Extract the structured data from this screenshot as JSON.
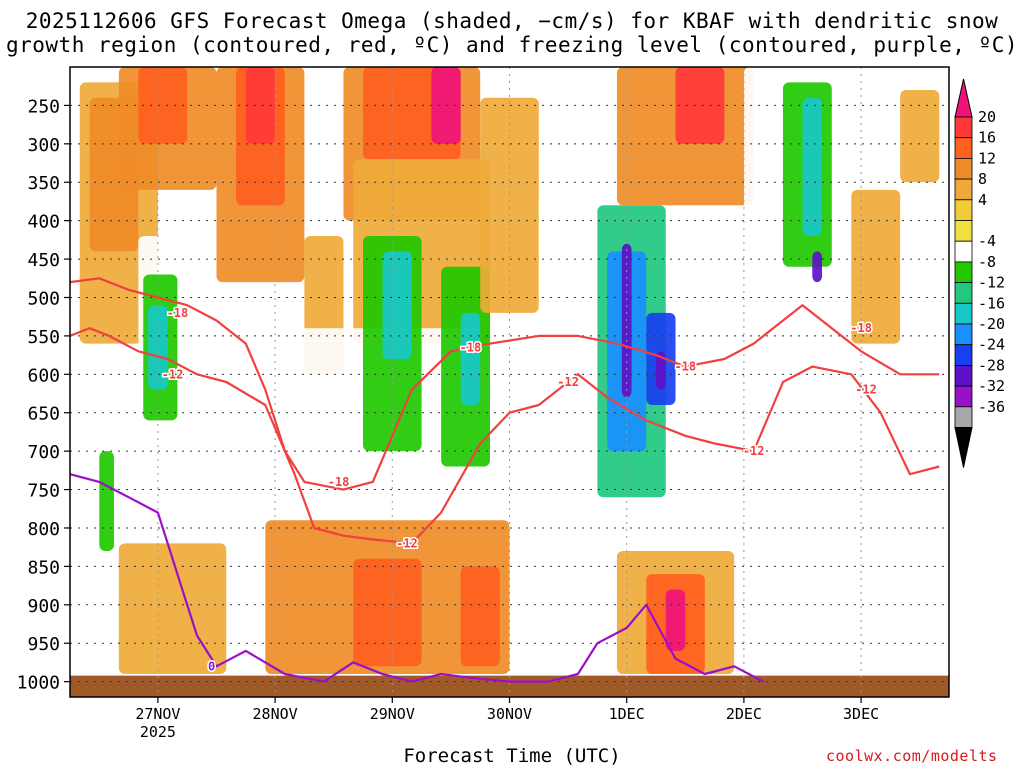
{
  "title": {
    "line1": "2025112606 GFS Forecast Omega (shaded, −cm/s) for KBAF with dendritic snow",
    "line2": "growth region (contoured, red, ºC) and freezing level (contoured, purple, ºC)"
  },
  "credit": "coolwx.com/modelts",
  "colors": {
    "dgz_line": "#f04040",
    "freezing_line": "#9a10c8",
    "terrain": "#a05a2a",
    "grid": "#333333"
  },
  "chart_data": {
    "type": "heatmap",
    "xlabel": "Forecast Time (UTC)",
    "ylabel": "",
    "x_ticks": [
      {
        "label": "27NOV",
        "sub": "2025",
        "hours_from_init": 18
      },
      {
        "label": "28NOV",
        "sub": "",
        "hours_from_init": 42
      },
      {
        "label": "29NOV",
        "sub": "",
        "hours_from_init": 66
      },
      {
        "label": "30NOV",
        "sub": "",
        "hours_from_init": 90
      },
      {
        "label": "1DEC",
        "sub": "",
        "hours_from_init": 114
      },
      {
        "label": "2DEC",
        "sub": "",
        "hours_from_init": 138
      },
      {
        "label": "3DEC",
        "sub": "",
        "hours_from_init": 162
      }
    ],
    "xlim_hours": [
      0,
      180
    ],
    "y_ticks": [
      250,
      300,
      350,
      400,
      450,
      500,
      550,
      600,
      650,
      700,
      750,
      800,
      850,
      900,
      950,
      1000
    ],
    "ylim_hpa": [
      200,
      1020
    ],
    "colorbar": {
      "levels": [
        20,
        16,
        12,
        8,
        4,
        -4,
        -8,
        -12,
        -16,
        -20,
        -24,
        -28,
        -32,
        -36
      ],
      "colors": [
        "#ff3838",
        "#ff6020",
        "#f08c28",
        "#eeaa38",
        "#f0cc38",
        "#f2e040",
        "#ffffff",
        "#20c800",
        "#20c880",
        "#18c8c8",
        "#1890ff",
        "#1840f0",
        "#6010c8",
        "#9810c8",
        "#a8a8a8",
        "#000000"
      ],
      "top_color": "#f0147a"
    },
    "omega_cells": [
      {
        "t0": 4,
        "t1": 10,
        "p0": 560,
        "p1": 860,
        "v": -10
      },
      {
        "t0": 6,
        "t1": 9,
        "p0": 700,
        "p1": 830,
        "v": -14
      },
      {
        "t0": 2,
        "t1": 18,
        "p0": 220,
        "p1": 560,
        "v": 6
      },
      {
        "t0": 4,
        "t1": 14,
        "p0": 240,
        "p1": 440,
        "v": 10
      },
      {
        "t0": 14,
        "t1": 24,
        "p0": 420,
        "p1": 720,
        "v": -10
      },
      {
        "t0": 15,
        "t1": 22,
        "p0": 470,
        "p1": 660,
        "v": -16
      },
      {
        "t0": 16,
        "t1": 20,
        "p0": 510,
        "p1": 620,
        "v": -22
      },
      {
        "t0": 10,
        "t1": 30,
        "p0": 200,
        "p1": 360,
        "v": 10
      },
      {
        "t0": 14,
        "t1": 24,
        "p0": 200,
        "p1": 300,
        "v": 14
      },
      {
        "t0": 24,
        "t1": 30,
        "p0": 500,
        "p1": 780,
        "v": -10
      },
      {
        "t0": 30,
        "t1": 48,
        "p0": 200,
        "p1": 480,
        "v": 8
      },
      {
        "t0": 34,
        "t1": 44,
        "p0": 200,
        "p1": 380,
        "v": 12
      },
      {
        "t0": 36,
        "t1": 42,
        "p0": 200,
        "p1": 300,
        "v": 17
      },
      {
        "t0": 48,
        "t1": 56,
        "p0": 420,
        "p1": 600,
        "v": 6
      },
      {
        "t0": 52,
        "t1": 60,
        "p0": 200,
        "p1": 300,
        "v": -10
      },
      {
        "t0": 56,
        "t1": 84,
        "p0": 200,
        "p1": 400,
        "v": 10
      },
      {
        "t0": 60,
        "t1": 80,
        "p0": 200,
        "p1": 320,
        "v": 14
      },
      {
        "t0": 74,
        "t1": 80,
        "p0": 200,
        "p1": 300,
        "v": 20
      },
      {
        "t0": 58,
        "t1": 86,
        "p0": 320,
        "p1": 560,
        "v": 6
      },
      {
        "t0": 46,
        "t1": 84,
        "p0": 540,
        "p1": 760,
        "v": -10
      },
      {
        "t0": 60,
        "t1": 72,
        "p0": 420,
        "p1": 700,
        "v": -14
      },
      {
        "t0": 64,
        "t1": 70,
        "p0": 440,
        "p1": 580,
        "v": -22
      },
      {
        "t0": 76,
        "t1": 86,
        "p0": 460,
        "p1": 720,
        "v": -14
      },
      {
        "t0": 80,
        "t1": 84,
        "p0": 520,
        "p1": 640,
        "v": -22
      },
      {
        "t0": 84,
        "t1": 96,
        "p0": 240,
        "p1": 520,
        "v": 6
      },
      {
        "t0": 96,
        "t1": 104,
        "p0": 360,
        "p1": 700,
        "v": -10
      },
      {
        "t0": 104,
        "t1": 126,
        "p0": 300,
        "p1": 830,
        "v": -12
      },
      {
        "t0": 108,
        "t1": 122,
        "p0": 380,
        "p1": 760,
        "v": -18
      },
      {
        "t0": 110,
        "t1": 118,
        "p0": 440,
        "p1": 700,
        "v": -26
      },
      {
        "t0": 113,
        "t1": 115,
        "p0": 430,
        "p1": 630,
        "v": -34
      },
      {
        "t0": 118,
        "t1": 124,
        "p0": 520,
        "p1": 640,
        "v": -30
      },
      {
        "t0": 120,
        "t1": 122,
        "p0": 570,
        "p1": 620,
        "v": -36
      },
      {
        "t0": 112,
        "t1": 140,
        "p0": 200,
        "p1": 380,
        "v": 10
      },
      {
        "t0": 124,
        "t1": 134,
        "p0": 200,
        "p1": 300,
        "v": 16
      },
      {
        "t0": 138,
        "t1": 160,
        "p0": 200,
        "p1": 560,
        "v": -12
      },
      {
        "t0": 146,
        "t1": 156,
        "p0": 220,
        "p1": 460,
        "v": -16
      },
      {
        "t0": 150,
        "t1": 154,
        "p0": 240,
        "p1": 420,
        "v": -22
      },
      {
        "t0": 152,
        "t1": 154,
        "p0": 440,
        "p1": 480,
        "v": -36
      },
      {
        "t0": 160,
        "t1": 170,
        "p0": 360,
        "p1": 560,
        "v": 6
      },
      {
        "t0": 170,
        "t1": 178,
        "p0": 230,
        "p1": 350,
        "v": 6
      },
      {
        "t0": 170,
        "t1": 178,
        "p0": 400,
        "p1": 640,
        "v": -10
      },
      {
        "t0": 10,
        "t1": 32,
        "p0": 820,
        "p1": 990,
        "v": 6
      },
      {
        "t0": 40,
        "t1": 90,
        "p0": 790,
        "p1": 990,
        "v": 8
      },
      {
        "t0": 58,
        "t1": 72,
        "p0": 840,
        "p1": 980,
        "v": 14
      },
      {
        "t0": 80,
        "t1": 88,
        "p0": 850,
        "p1": 980,
        "v": 14
      },
      {
        "t0": 112,
        "t1": 136,
        "p0": 830,
        "p1": 990,
        "v": 6
      },
      {
        "t0": 118,
        "t1": 130,
        "p0": 860,
        "p1": 990,
        "v": 12
      },
      {
        "t0": 122,
        "t1": 126,
        "p0": 880,
        "p1": 960,
        "v": 20
      },
      {
        "t0": 144,
        "t1": 176,
        "p0": 900,
        "p1": 990,
        "v": -10
      }
    ],
    "contours": [
      {
        "name": "-18",
        "color": "#f04040",
        "points": [
          [
            0,
            480
          ],
          [
            6,
            475
          ],
          [
            12,
            490
          ],
          [
            18,
            500
          ],
          [
            24,
            510
          ],
          [
            30,
            530
          ],
          [
            36,
            560
          ],
          [
            40,
            620
          ],
          [
            44,
            700
          ],
          [
            48,
            740
          ],
          [
            56,
            750
          ],
          [
            62,
            740
          ],
          [
            70,
            620
          ],
          [
            78,
            570
          ],
          [
            86,
            560
          ],
          [
            96,
            550
          ],
          [
            104,
            550
          ],
          [
            112,
            560
          ],
          [
            120,
            575
          ],
          [
            126,
            590
          ],
          [
            134,
            580
          ],
          [
            140,
            560
          ],
          [
            146,
            530
          ],
          [
            150,
            510
          ],
          [
            156,
            540
          ],
          [
            162,
            570
          ],
          [
            170,
            600
          ],
          [
            178,
            600
          ]
        ]
      },
      {
        "name": "-12",
        "color": "#f04040",
        "points": [
          [
            0,
            550
          ],
          [
            4,
            540
          ],
          [
            8,
            550
          ],
          [
            14,
            570
          ],
          [
            20,
            580
          ],
          [
            26,
            600
          ],
          [
            32,
            610
          ],
          [
            40,
            640
          ],
          [
            46,
            730
          ],
          [
            50,
            800
          ],
          [
            56,
            810
          ],
          [
            62,
            815
          ],
          [
            70,
            820
          ],
          [
            76,
            780
          ],
          [
            84,
            690
          ],
          [
            90,
            650
          ],
          [
            96,
            640
          ],
          [
            104,
            600
          ],
          [
            110,
            630
          ],
          [
            118,
            660
          ],
          [
            126,
            680
          ],
          [
            132,
            690
          ],
          [
            140,
            700
          ],
          [
            146,
            610
          ],
          [
            152,
            590
          ],
          [
            160,
            600
          ],
          [
            166,
            650
          ],
          [
            172,
            730
          ],
          [
            178,
            720
          ]
        ]
      },
      {
        "name": "0",
        "color": "#9a10c8",
        "points": [
          [
            0,
            730
          ],
          [
            6,
            740
          ],
          [
            12,
            760
          ],
          [
            18,
            780
          ],
          [
            22,
            860
          ],
          [
            26,
            940
          ],
          [
            30,
            980
          ],
          [
            36,
            960
          ],
          [
            44,
            990
          ],
          [
            52,
            1000
          ],
          [
            58,
            975
          ],
          [
            64,
            990
          ],
          [
            70,
            1000
          ],
          [
            76,
            990
          ],
          [
            82,
            995
          ],
          [
            90,
            1000
          ],
          [
            98,
            1000
          ],
          [
            104,
            990
          ],
          [
            108,
            950
          ],
          [
            114,
            930
          ],
          [
            118,
            900
          ],
          [
            124,
            970
          ],
          [
            130,
            990
          ],
          [
            136,
            980
          ],
          [
            142,
            1000
          ]
        ]
      }
    ],
    "contour_labels": [
      {
        "text": "-18",
        "t": 22,
        "p": 520,
        "color": "#f04040"
      },
      {
        "text": "-12",
        "t": 21,
        "p": 600,
        "color": "#f04040"
      },
      {
        "text": "0",
        "t": 29,
        "p": 980,
        "color": "#9a10c8"
      },
      {
        "text": "-18",
        "t": 55,
        "p": 740,
        "color": "#f04040"
      },
      {
        "text": "-12",
        "t": 69,
        "p": 820,
        "color": "#f04040"
      },
      {
        "text": "-18",
        "t": 82,
        "p": 565,
        "color": "#f04040"
      },
      {
        "text": "-12",
        "t": 102,
        "p": 610,
        "color": "#f04040"
      },
      {
        "text": "-18",
        "t": 126,
        "p": 590,
        "color": "#f04040"
      },
      {
        "text": "-12",
        "t": 140,
        "p": 700,
        "color": "#f04040"
      },
      {
        "text": "-18",
        "t": 162,
        "p": 540,
        "color": "#f04040"
      },
      {
        "text": "-12",
        "t": 163,
        "p": 620,
        "color": "#f04040"
      }
    ]
  }
}
